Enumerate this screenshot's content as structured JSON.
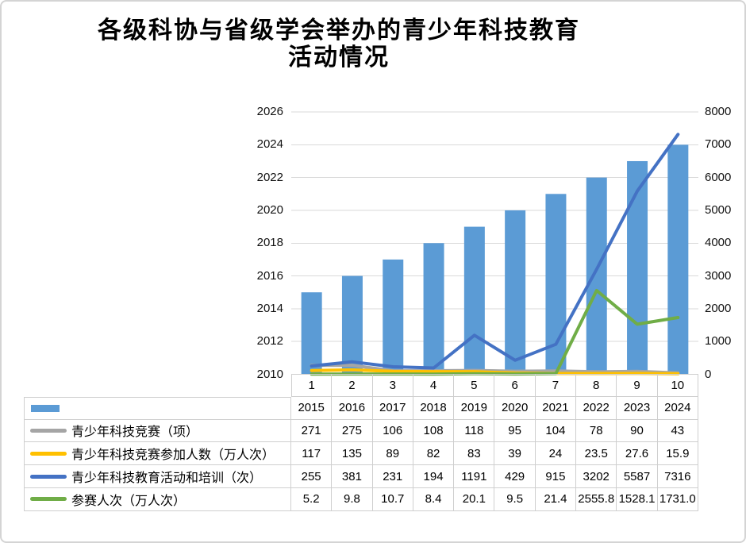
{
  "title": {
    "line1": "各级科协与省级学会举办的青少年科技教育",
    "line2": "活动情况"
  },
  "chart_data": {
    "type": "combo-bar-line",
    "categories": [
      "1",
      "2",
      "3",
      "4",
      "5",
      "6",
      "7",
      "8",
      "9",
      "10"
    ],
    "bar_series": {
      "name": "",
      "axis": "left",
      "color": "#5b9bd5",
      "values": [
        2015,
        2016,
        2017,
        2018,
        2019,
        2020,
        2021,
        2022,
        2023,
        2024
      ],
      "display": [
        "2015",
        "2016",
        "2017",
        "2018",
        "2019",
        "2020",
        "2021",
        "2022",
        "2023",
        "2024"
      ]
    },
    "line_series": [
      {
        "name": "青少年科技竞赛（项）",
        "axis": "right",
        "color": "#a5a5a5",
        "values": [
          271,
          275,
          106,
          108,
          118,
          95,
          104,
          78,
          90,
          43
        ],
        "display": [
          "271",
          "275",
          "106",
          "108",
          "118",
          "95",
          "104",
          "78",
          "90",
          "43"
        ]
      },
      {
        "name": "青少年科技竞赛参加人数（万人次）",
        "axis": "right",
        "color": "#ffc000",
        "values": [
          117,
          135,
          89,
          82,
          83,
          39,
          24,
          23.5,
          27.6,
          15.9
        ],
        "display": [
          "117",
          "135",
          "89",
          "82",
          "83",
          "39",
          "24",
          "23.5",
          "27.6",
          "15.9"
        ]
      },
      {
        "name": "青少年科技教育活动和培训（次）",
        "axis": "right",
        "color": "#4472c4",
        "values": [
          255,
          381,
          231,
          194,
          1191,
          429,
          915,
          3202,
          5587,
          7316
        ],
        "display": [
          "255",
          "381",
          "231",
          "194",
          "1191",
          "429",
          "915",
          "3202",
          "5587",
          "7316"
        ]
      },
      {
        "name": "参赛人次（万人次）",
        "axis": "right",
        "color": "#70ad47",
        "values": [
          5.2,
          9.8,
          10.7,
          8.4,
          20.1,
          9.5,
          21.4,
          2555.8,
          1528.1,
          1731.0
        ],
        "display": [
          "5.2",
          "9.8",
          "10.7",
          "8.4",
          "20.1",
          "9.5",
          "21.4",
          "2555.8",
          "1528.1",
          "1731.0"
        ]
      }
    ],
    "left_axis": {
      "min": 2010,
      "max": 2026,
      "step": 2,
      "labels": [
        "2010",
        "2012",
        "2014",
        "2016",
        "2018",
        "2020",
        "2022",
        "2024",
        "2026"
      ]
    },
    "right_axis": {
      "min": 0,
      "max": 8000,
      "step": 1000,
      "labels": [
        "0",
        "1000",
        "2000",
        "3000",
        "4000",
        "5000",
        "6000",
        "7000",
        "8000"
      ]
    },
    "gridlines": true,
    "legend_position": "data-table-left-column"
  },
  "colors": {
    "gridline": "#d9d9d9",
    "table_border": "#cfcfcf",
    "bar_fill": "#5b9bd5"
  }
}
